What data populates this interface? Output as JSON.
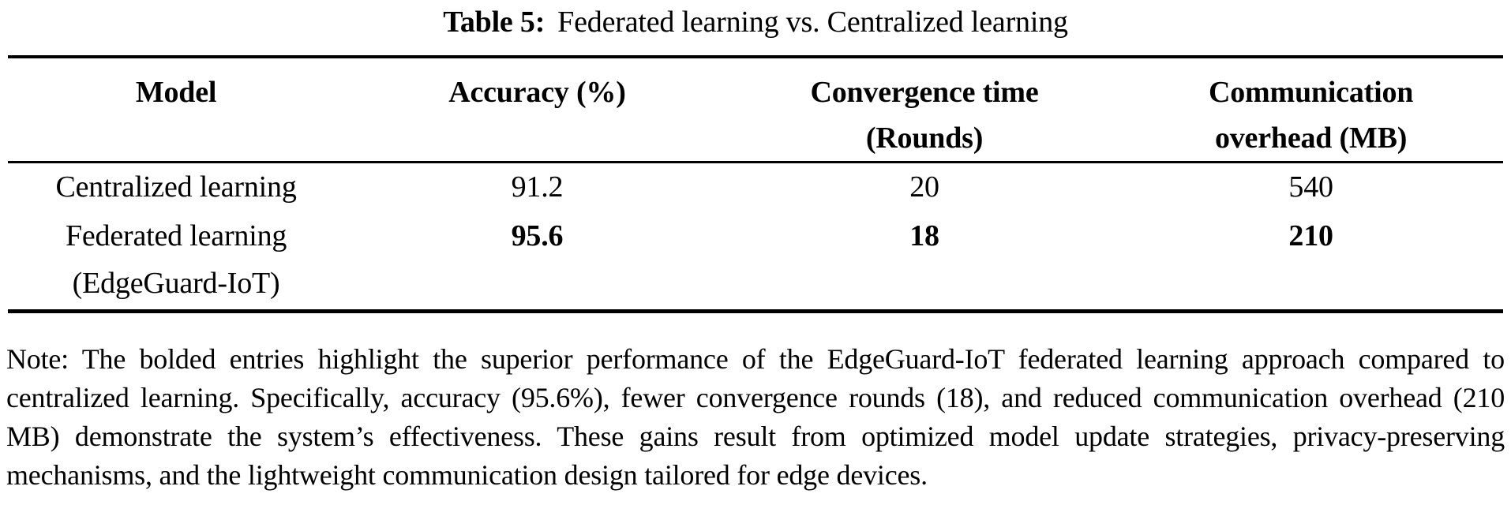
{
  "title": {
    "label": "Table 5:",
    "caption": "Federated learning vs. Centralized learning"
  },
  "table": {
    "columns": [
      {
        "line1": "Model",
        "line2": ""
      },
      {
        "line1": "Accuracy (%)",
        "line2": ""
      },
      {
        "line1": "Convergence time",
        "line2": "(Rounds)"
      },
      {
        "line1": "Communication",
        "line2": "overhead (MB)"
      }
    ],
    "rows": [
      {
        "model_line1": "Centralized learning",
        "model_line2": "",
        "accuracy": "91.2",
        "convergence_rounds": "20",
        "overhead_mb": "540"
      },
      {
        "model_line1": "Federated learning",
        "model_line2": "(EdgeGuard-IoT)",
        "accuracy": "95.6",
        "convergence_rounds": "18",
        "overhead_mb": "210"
      }
    ]
  },
  "note": "Note: The bolded entries highlight the superior performance of the EdgeGuard-IoT federated learning approach compared to centralized learning. Specifically, accuracy (95.6%), fewer convergence rounds (18), and reduced communication overhead (210 MB) demonstrate the system’s effectiveness. These gains result from optimized model update strategies, privacy-preserving mechanisms, and the lightweight communication design tailored for edge devices."
}
